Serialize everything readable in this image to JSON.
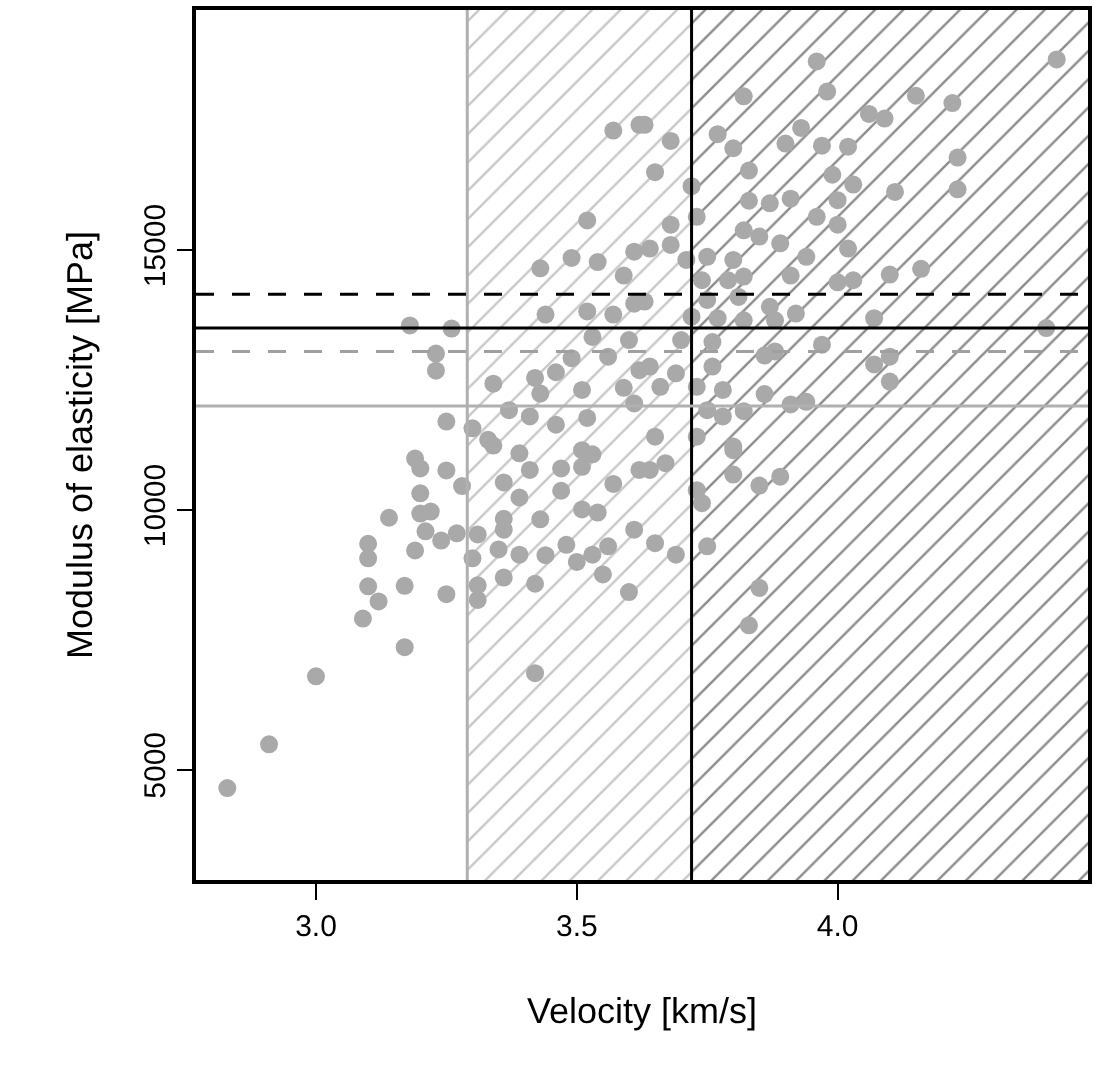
{
  "chart_data": {
    "type": "scatter",
    "xlabel": "Velocity [km/s]",
    "ylabel": "Modulus of elasticity [MPa]",
    "xlim": [
      2.77,
      4.48
    ],
    "ylim": [
      2880,
      19620
    ],
    "xticks": [
      {
        "value": 3,
        "label": "3.0"
      },
      {
        "value": 3.5,
        "label": "3.5"
      },
      {
        "value": 4,
        "label": "4.0"
      }
    ],
    "yticks": [
      5000,
      10000,
      15000
    ],
    "grid": false,
    "marker": "circle",
    "bands": [
      {
        "axis": "x",
        "from": 3.29,
        "to": 3.72,
        "color": "#c8c8c8"
      },
      {
        "axis": "x",
        "from": 3.72,
        "to": 4.48,
        "color": "#8c8c8c"
      }
    ],
    "ref_lines": [
      {
        "axis": "x",
        "value": 3.29,
        "color": "#b0b0b0",
        "line_style": "solid"
      },
      {
        "axis": "x",
        "value": 3.72,
        "color": "#000000",
        "line_style": "solid"
      },
      {
        "axis": "y",
        "value": 14150,
        "color": "#000000",
        "line_style": "dashed"
      },
      {
        "axis": "y",
        "value": 13500,
        "color": "#000000",
        "line_style": "solid"
      },
      {
        "axis": "y",
        "value": 13050,
        "color": "#a0a0a0",
        "line_style": "dashed"
      },
      {
        "axis": "y",
        "value": 12000,
        "color": "#b0b0b0",
        "line_style": "solid"
      }
    ],
    "series": [
      {
        "color": "#a9a9a9",
        "x": [
          2.83,
          2.91,
          3.0,
          3.17,
          3.42,
          3.09,
          3.12,
          3.1,
          3.17,
          3.25,
          3.31,
          3.31,
          3.36,
          3.42,
          3.55,
          3.6,
          3.1,
          3.1,
          3.19,
          3.24,
          3.27,
          3.31,
          3.21,
          3.3,
          3.35,
          3.39,
          3.44,
          3.48,
          3.5,
          3.53,
          3.56,
          3.14,
          3.2,
          3.22,
          3.2,
          3.36,
          3.36,
          3.43,
          3.51,
          3.54,
          3.61,
          3.19,
          3.2,
          3.25,
          3.28,
          3.36,
          3.39,
          3.47,
          3.57,
          3.47,
          3.51,
          3.62,
          3.34,
          3.39,
          3.41,
          3.51,
          3.53,
          3.8,
          3.8,
          3.85,
          3.89,
          3.73,
          3.74,
          3.75,
          3.69,
          3.65,
          3.64,
          3.67,
          3.85,
          3.83,
          3.57,
          3.62,
          3.52,
          3.43,
          3.49,
          3.54,
          3.59,
          3.61,
          3.44,
          3.52,
          3.57,
          3.61,
          3.18,
          3.26,
          3.23,
          3.23,
          3.34,
          3.42,
          3.46,
          3.49,
          3.53,
          3.56,
          3.6,
          3.51,
          3.59,
          3.43,
          3.37,
          3.41,
          3.46,
          3.52,
          3.25,
          3.3,
          3.33,
          3.61,
          3.62,
          3.96,
          4.42,
          3.82,
          3.98,
          4.15,
          4.22,
          4.06,
          4.09,
          3.63,
          3.68,
          3.77,
          3.8,
          3.9,
          3.93,
          3.97,
          4.02,
          4.23,
          3.65,
          3.72,
          3.83,
          3.99,
          4.03,
          4.11,
          4.23,
          3.83,
          3.87,
          3.91,
          4.0,
          3.73,
          3.68,
          3.96,
          4.0,
          3.82,
          3.85,
          3.89,
          3.64,
          3.68,
          4.02,
          3.75,
          3.8,
          3.94,
          3.91,
          3.71,
          3.74,
          3.79,
          3.82,
          4.0,
          4.03,
          4.1,
          4.16,
          3.63,
          3.75,
          3.81,
          3.87,
          3.92,
          3.72,
          3.77,
          3.82,
          3.88,
          4.07,
          4.4,
          3.7,
          3.76,
          3.97,
          3.86,
          3.88,
          3.64,
          3.69,
          3.76,
          4.07,
          4.1,
          4.1,
          3.66,
          3.73,
          3.78,
          3.86,
          3.91,
          3.94,
          3.75,
          3.78,
          3.82,
          3.65,
          3.73,
          3.8
        ],
        "values": [
          4650,
          5490,
          6800,
          7360,
          6860,
          7910,
          8240,
          8530,
          8540,
          8380,
          8270,
          8550,
          8700,
          8580,
          8760,
          8420,
          9070,
          9350,
          9220,
          9410,
          9550,
          9530,
          9590,
          9070,
          9240,
          9140,
          9130,
          9330,
          9000,
          9140,
          9300,
          9850,
          9930,
          9970,
          10320,
          9830,
          9620,
          9820,
          10010,
          9950,
          9620,
          10990,
          10800,
          10760,
          10460,
          10530,
          10240,
          10370,
          10500,
          10800,
          10830,
          10770,
          11240,
          11090,
          10770,
          11150,
          11070,
          11150,
          10680,
          10470,
          10640,
          10380,
          10130,
          9300,
          9140,
          9360,
          10770,
          10900,
          8500,
          7780,
          17300,
          17410,
          15570,
          14650,
          14850,
          14770,
          14510,
          14970,
          13760,
          13820,
          13760,
          13970,
          13550,
          13490,
          13010,
          12680,
          12430,
          12540,
          12650,
          12920,
          13330,
          12950,
          13270,
          12310,
          12350,
          12240,
          11920,
          11800,
          11640,
          11770,
          11700,
          11570,
          11350,
          12050,
          12690,
          18630,
          18670,
          17960,
          18050,
          17970,
          17830,
          17620,
          17530,
          17410,
          17100,
          17230,
          16960,
          17050,
          17350,
          17010,
          16990,
          16780,
          16500,
          16230,
          16530,
          16450,
          16260,
          16120,
          16170,
          15950,
          15900,
          15990,
          15960,
          15640,
          15490,
          15640,
          15490,
          15380,
          15260,
          15130,
          15030,
          15100,
          15030,
          14870,
          14810,
          14870,
          14510,
          14810,
          14420,
          14420,
          14490,
          14380,
          14420,
          14530,
          14640,
          14010,
          14040,
          14100,
          13910,
          13780,
          13720,
          13690,
          13650,
          13650,
          13690,
          13500,
          13270,
          13230,
          13180,
          12970,
          13050,
          12760,
          12630,
          12760,
          12800,
          12950,
          12470,
          12370,
          12370,
          12310,
          12230,
          12030,
          12080,
          11920,
          11800,
          11900,
          11410,
          11410,
          11220
        ]
      }
    ]
  }
}
